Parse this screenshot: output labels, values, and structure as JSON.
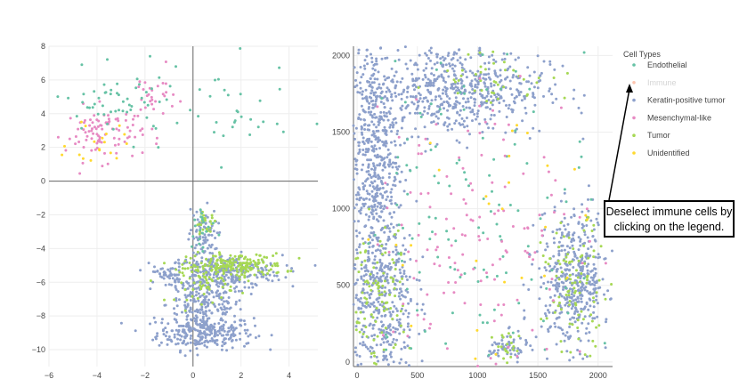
{
  "colors": {
    "Endothelial": "#66c2a5",
    "Immune": "#fc8d62",
    "Keratin-positive tumor": "#8da0cb",
    "Mesenchymal-like": "#e78ac3",
    "Tumor": "#a6d854",
    "Unidentified": "#ffd92f",
    "gridline": "#eeeeee",
    "zeroline": "#666666"
  },
  "legend": {
    "title": "Cell Types",
    "items": [
      {
        "label": "Endothelial",
        "hidden": false
      },
      {
        "label": "Immune",
        "hidden": true
      },
      {
        "label": "Keratin-positive tumor",
        "hidden": false
      },
      {
        "label": "Mesenchymal-like",
        "hidden": false
      },
      {
        "label": "Tumor",
        "hidden": false
      },
      {
        "label": "Unidentified",
        "hidden": false
      }
    ],
    "placement": "top-right"
  },
  "annotation": {
    "line1": "Deselect immune cells by",
    "line2": "clicking on the legend."
  },
  "chart_data": [
    {
      "type": "scatter",
      "panel": "embedding",
      "xlim": [
        -6,
        5.2
      ],
      "ylim": [
        -11,
        8
      ],
      "xticks": [
        -6,
        -4,
        -2,
        0,
        2,
        4
      ],
      "yticks": [
        -10,
        -8,
        -6,
        -4,
        -2,
        0,
        2,
        4,
        6,
        8
      ],
      "grid": true,
      "clusters": [
        {
          "series": "Keratin-positive tumor",
          "cx": 0.5,
          "cy": -9.0,
          "sx": 1.0,
          "sy": 0.5,
          "n": 260
        },
        {
          "series": "Keratin-positive tumor",
          "cx": 0.5,
          "cy": -7.3,
          "sx": 0.8,
          "sy": 0.9,
          "n": 220
        },
        {
          "series": "Keratin-positive tumor",
          "cx": 1.3,
          "cy": -5.4,
          "sx": 1.2,
          "sy": 0.5,
          "n": 260
        },
        {
          "series": "Keratin-positive tumor",
          "cx": 0.4,
          "cy": -3.4,
          "sx": 0.3,
          "sy": 0.9,
          "n": 80
        },
        {
          "series": "Keratin-positive tumor",
          "cx": -1.0,
          "cy": -5.5,
          "sx": 0.3,
          "sy": 0.3,
          "n": 40
        },
        {
          "series": "Tumor",
          "cx": 1.8,
          "cy": -5.0,
          "sx": 1.0,
          "sy": 0.35,
          "n": 180
        },
        {
          "series": "Tumor",
          "cx": 0.5,
          "cy": -6.0,
          "sx": 0.6,
          "sy": 0.6,
          "n": 60
        },
        {
          "series": "Tumor",
          "cx": 0.5,
          "cy": -2.5,
          "sx": 0.25,
          "sy": 0.3,
          "n": 25
        },
        {
          "series": "Mesenchymal-like",
          "cx": -3.7,
          "cy": 2.8,
          "sx": 0.8,
          "sy": 0.8,
          "n": 90
        },
        {
          "series": "Mesenchymal-like",
          "cx": -1.7,
          "cy": 5.0,
          "sx": 0.5,
          "sy": 0.8,
          "n": 30
        },
        {
          "series": "Endothelial",
          "cx": -3.0,
          "cy": 4.5,
          "sx": 1.4,
          "sy": 1.0,
          "n": 60
        },
        {
          "series": "Endothelial",
          "cx": 1.6,
          "cy": 4.0,
          "sx": 1.2,
          "sy": 1.5,
          "n": 30
        },
        {
          "series": "Endothelial",
          "cx": 0.4,
          "cy": -3.0,
          "sx": 0.3,
          "sy": 1.0,
          "n": 20
        },
        {
          "series": "Unidentified",
          "cx": -4.0,
          "cy": 2.2,
          "sx": 0.6,
          "sy": 0.7,
          "n": 18
        }
      ]
    },
    {
      "type": "scatter",
      "panel": "spatial",
      "xlim": [
        -30,
        2120
      ],
      "ylim": [
        -30,
        2060
      ],
      "xticks": [
        0,
        500,
        1000,
        1500,
        2000
      ],
      "yticks": [
        0,
        500,
        1000,
        1500,
        2000
      ],
      "grid": true,
      "clusters": [
        {
          "series": "Keratin-positive tumor",
          "cx": 800,
          "cy": 1780,
          "sx": 380,
          "sy": 150,
          "n": 600
        },
        {
          "series": "Keratin-positive tumor",
          "cx": 130,
          "cy": 1400,
          "sx": 110,
          "sy": 350,
          "n": 480
        },
        {
          "series": "Keratin-positive tumor",
          "cx": 200,
          "cy": 400,
          "sx": 140,
          "sy": 330,
          "n": 480
        },
        {
          "series": "Keratin-positive tumor",
          "cx": 1800,
          "cy": 540,
          "sx": 150,
          "sy": 220,
          "n": 450
        },
        {
          "series": "Keratin-positive tumor",
          "cx": 1250,
          "cy": 90,
          "sx": 80,
          "sy": 50,
          "n": 60
        },
        {
          "series": "Tumor",
          "cx": 160,
          "cy": 380,
          "sx": 120,
          "sy": 250,
          "n": 110
        },
        {
          "series": "Tumor",
          "cx": 1820,
          "cy": 500,
          "sx": 140,
          "sy": 200,
          "n": 100
        },
        {
          "series": "Tumor",
          "cx": 1150,
          "cy": 1850,
          "sx": 250,
          "sy": 90,
          "n": 40
        },
        {
          "series": "Tumor",
          "cx": 1250,
          "cy": 100,
          "sx": 60,
          "sy": 50,
          "n": 20
        },
        {
          "series": "Endothelial",
          "cx": 1000,
          "cy": 1000,
          "sx": 500,
          "sy": 550,
          "n": 130
        },
        {
          "series": "Mesenchymal-like",
          "cx": 1000,
          "cy": 800,
          "sx": 450,
          "sy": 550,
          "n": 150
        },
        {
          "series": "Unidentified",
          "cx": 1000,
          "cy": 900,
          "sx": 500,
          "sy": 550,
          "n": 30
        }
      ]
    }
  ]
}
